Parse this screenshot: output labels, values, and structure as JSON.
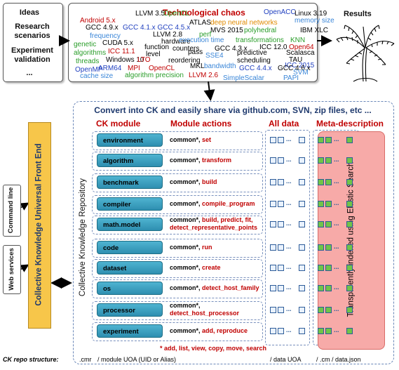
{
  "ideas": [
    "Ideas",
    "Research scenarios",
    "Experiment validation",
    "..."
  ],
  "chaos": {
    "title": "Technological chaos",
    "words": [
      {
        "t": "LLVM 3.5",
        "c": "#000000"
      },
      {
        "t": "OpenCL",
        "c": "#2a9d2a"
      },
      {
        "t": "OpenACC",
        "c": "#1f3fbf"
      },
      {
        "t": "Linux 3.19",
        "c": "#000000"
      },
      {
        "t": "Android 5.x",
        "c": "#c00000"
      },
      {
        "t": "ATLAS",
        "c": "#000000"
      },
      {
        "t": "deep neural networks",
        "c": "#e08a00"
      },
      {
        "t": "memory size",
        "c": "#3a86d8"
      },
      {
        "t": "GCC 4.9.x",
        "c": "#000000"
      },
      {
        "t": "GCC 4.1.x GCC 4.5.x",
        "c": "#1f3fbf"
      },
      {
        "t": "MVS 2015",
        "c": "#000000"
      },
      {
        "t": "polyhedral",
        "c": "#2a9d2a"
      },
      {
        "t": "IBM XLC",
        "c": "#000000"
      },
      {
        "t": "frequency",
        "c": "#3a86d8"
      },
      {
        "t": "LLVM 2.8",
        "c": "#000000"
      },
      {
        "t": "hardware",
        "c": "#000000"
      },
      {
        "t": "perf",
        "c": "#2a9d2a"
      },
      {
        "t": "execution time",
        "c": "#3a86d8"
      },
      {
        "t": "transformations",
        "c": "#2a9d2a"
      },
      {
        "t": "KNN",
        "c": "#2a9d2a"
      },
      {
        "t": "genetic",
        "c": "#2a9d2a"
      },
      {
        "t": "CUDA 5.x",
        "c": "#000000"
      },
      {
        "t": "function",
        "c": "#000000"
      },
      {
        "t": "counters",
        "c": "#000000"
      },
      {
        "t": "GCC 4.3.x",
        "c": "#000000"
      },
      {
        "t": "ICC 12.0",
        "c": "#000000"
      },
      {
        "t": "Open64",
        "c": "#c00000"
      },
      {
        "t": "algorithms",
        "c": "#2a9d2a"
      },
      {
        "t": "ICC 11.1",
        "c": "#c00000"
      },
      {
        "t": "level",
        "c": "#000000"
      },
      {
        "t": "pass",
        "c": "#000000"
      },
      {
        "t": "SSE4",
        "c": "#3a86d8"
      },
      {
        "t": "predictive",
        "c": "#000000"
      },
      {
        "t": "Scalasca",
        "c": "#000000"
      },
      {
        "t": "threads",
        "c": "#2a9d2a"
      },
      {
        "t": "Windows 10",
        "c": "#000000"
      },
      {
        "t": "LTO",
        "c": "#c00000"
      },
      {
        "t": "reordering",
        "c": "#000000"
      },
      {
        "t": "scheduling",
        "c": "#000000"
      },
      {
        "t": "TAU",
        "c": "#000000"
      },
      {
        "t": "ICC 2015",
        "c": "#1f3fbf"
      },
      {
        "t": "OpenMP",
        "c": "#1f3fbf"
      },
      {
        "t": "ARM64",
        "c": "#1f3fbf"
      },
      {
        "t": "MPI",
        "c": "#c00000"
      },
      {
        "t": "OpenCL",
        "c": "#c00000"
      },
      {
        "t": "MKL",
        "c": "#000000"
      },
      {
        "t": "bandwidth",
        "c": "#3a86d8"
      },
      {
        "t": "GCC 4.4.x",
        "c": "#1f3fbf"
      },
      {
        "t": "GCC 4.6.x",
        "c": "#000000"
      },
      {
        "t": "SVM",
        "c": "#3a86d8"
      },
      {
        "t": "cache size",
        "c": "#3a86d8"
      },
      {
        "t": "algorithm precision",
        "c": "#2a9d2a"
      },
      {
        "t": "LLVM 2.6",
        "c": "#c00000"
      },
      {
        "t": "SimpleScalar",
        "c": "#3a86d8"
      },
      {
        "t": "PAPI",
        "c": "#3a86d8"
      }
    ]
  },
  "results_label": "Results",
  "main_title": "Convert into CK and easily share via github.com, SVN, zip files, etc ...",
  "headers": {
    "module": "CK module",
    "actions": "Module actions",
    "data": "All data",
    "meta": "Meta-description"
  },
  "repo_label": "Collective Knowledge Repository",
  "search_label": "Transparently indexed using Elastic Search",
  "front_end_label": "Collective Knowledge Universal Front End",
  "side_labels": {
    "command_line": "Command line",
    "web_services": "Web services"
  },
  "modules": [
    {
      "name": "environment",
      "action_black": "common*, ",
      "action_red": "set"
    },
    {
      "name": "algorithm",
      "action_black": "common*, ",
      "action_red": "transform"
    },
    {
      "name": "benchmark",
      "action_black": "common*, ",
      "action_red": "build"
    },
    {
      "name": "compiler",
      "action_black": "common*, ",
      "action_red": "compile_program"
    },
    {
      "name": "math.model",
      "action_black": "common*, ",
      "action_red": "build, predict, fit,",
      "action_red2": "detect_representative_points"
    },
    {
      "name": "code",
      "action_black": "common*, ",
      "action_red": "run"
    },
    {
      "name": "dataset",
      "action_black": "common*, ",
      "action_red": "create"
    },
    {
      "name": "os",
      "action_black": "common*, ",
      "action_red": "detect_host_family"
    },
    {
      "name": "processor",
      "action_black": "common*,",
      "action_red": "",
      "action_red2": "detect_host_processor"
    },
    {
      "name": "experiment",
      "action_black": "common*, ",
      "action_red": "add, reproduce"
    }
  ],
  "footnote": "* add, list, view, copy, move, search",
  "structure": {
    "label": "CK repo structure:",
    "root": ".cmr",
    "module": "/ module UOA (UID or Alias)",
    "data": "/ data UOA",
    "meta": "/ .cm / data.json"
  },
  "ellipsis": "..."
}
